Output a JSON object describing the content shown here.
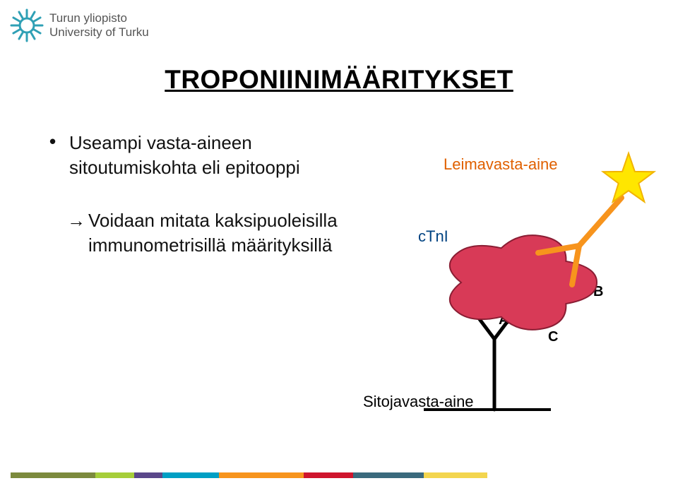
{
  "logo": {
    "line1": "Turun yliopisto",
    "line2": "University of Turku",
    "text_color": "#555555",
    "emblem_color": "#2fa0b5"
  },
  "title": "TROPONIINIMÄÄRITYKSET",
  "bullet": {
    "marker": "•",
    "line1": "Useampi vasta-aineen",
    "line2": "sitoutumiskohta eli epitooppi"
  },
  "arrow_block": {
    "marker": "→",
    "line1": "Voidaan mitata kaksipuoleisilla",
    "line2": "immunometrisillä määrityksillä"
  },
  "labels": {
    "leimavasta": "Leimavasta-aine",
    "leimavasta_color": "#e06000",
    "ctni": "cTnI",
    "ctni_color": "#004382",
    "sitoja": "Sitojavasta-aine",
    "sitoja_color": "#000000",
    "A": "A",
    "B": "B",
    "C": "C"
  },
  "diagram": {
    "antigen_fill": "#d83a57",
    "antigen_stroke": "#8a1d33",
    "capture_ab_color": "#000000",
    "capture_line_width": 5,
    "label_ab_color": "#f7941d",
    "label_line_width": 8,
    "star_fill": "#ffe600",
    "star_stroke": "#f2b400",
    "baseline_color": "#000000",
    "baseline_width": 4,
    "background": "#ffffff"
  },
  "footer_colors": [
    "#7c8a3d",
    "#a6ce39",
    "#5a478a",
    "#009fc4",
    "#f7941d",
    "#cf152d",
    "#3a6a7d",
    "#f3d54e"
  ],
  "footer_widths": [
    120,
    55,
    40,
    80,
    120,
    70,
    100,
    90
  ]
}
